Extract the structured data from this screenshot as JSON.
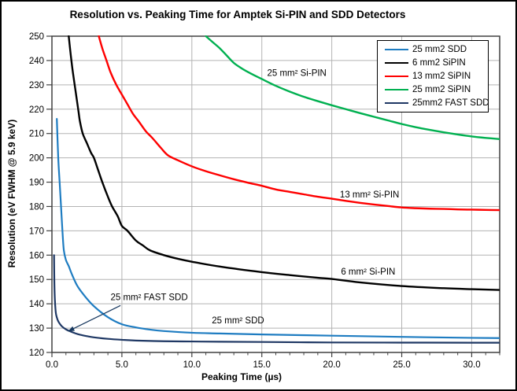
{
  "title": "Resolution vs. Peaking Time for Amptek Si-PIN and SDD Detectors",
  "chart_data": {
    "type": "line",
    "title": "Resolution vs. Peaking Time for Amptek Si-PIN and SDD Detectors",
    "xlabel": "Peaking Time (µs)",
    "ylabel": "Resolution (eV FWHM @ 5.9 keV)",
    "xlim": [
      0,
      32
    ],
    "ylim": [
      120,
      250
    ],
    "grid": true,
    "x_major_ticks": [
      0,
      5,
      10,
      15,
      20,
      25,
      30
    ],
    "x_major_tick_labels": [
      "0.0",
      "5.0",
      "10.0",
      "15.0",
      "20.0",
      "25.0",
      "30.0"
    ],
    "x_minor_tick_step": 1,
    "y_ticks": [
      120,
      130,
      140,
      150,
      160,
      170,
      180,
      190,
      200,
      210,
      220,
      230,
      240,
      250
    ],
    "legend_position": "top-right",
    "series": [
      {
        "name": "25 mm2 SDD",
        "color": "#1E7CC1",
        "width": 2.2,
        "points": [
          [
            0.35,
            216
          ],
          [
            0.45,
            200
          ],
          [
            0.55,
            190
          ],
          [
            0.65,
            180
          ],
          [
            0.75,
            170
          ],
          [
            0.85,
            162
          ],
          [
            1.0,
            158
          ],
          [
            1.2,
            155.5
          ],
          [
            1.4,
            152.5
          ],
          [
            1.8,
            147.5
          ],
          [
            2.3,
            143.5
          ],
          [
            3,
            139
          ],
          [
            4,
            134.5
          ],
          [
            5,
            131.6
          ],
          [
            6,
            130.3
          ],
          [
            7,
            129.4
          ],
          [
            8,
            128.8
          ],
          [
            10,
            128.1
          ],
          [
            12,
            127.8
          ],
          [
            15,
            127.4
          ],
          [
            20,
            126.9
          ],
          [
            25,
            126.4
          ],
          [
            30,
            126
          ],
          [
            32,
            125.9
          ]
        ]
      },
      {
        "name": "6 mm2 SiPIN",
        "color": "#000000",
        "width": 2.4,
        "points": [
          [
            1.2,
            250
          ],
          [
            1.35,
            242
          ],
          [
            1.5,
            235
          ],
          [
            1.7,
            227
          ],
          [
            1.9,
            219
          ],
          [
            2.0,
            215
          ],
          [
            2.2,
            210
          ],
          [
            2.5,
            206
          ],
          [
            2.8,
            202
          ],
          [
            3.0,
            200
          ],
          [
            3.3,
            195
          ],
          [
            3.6,
            190
          ],
          [
            4.0,
            184
          ],
          [
            4.3,
            180
          ],
          [
            4.7,
            176
          ],
          [
            5.0,
            172
          ],
          [
            5.4,
            170
          ],
          [
            6,
            166
          ],
          [
            6.5,
            164
          ],
          [
            7,
            162
          ],
          [
            8,
            160
          ],
          [
            9,
            158.5
          ],
          [
            10,
            157.3
          ],
          [
            12,
            155.3
          ],
          [
            15,
            153
          ],
          [
            17,
            151.8
          ],
          [
            19,
            150.7
          ],
          [
            20,
            150.2
          ],
          [
            22,
            148.8
          ],
          [
            25,
            147.3
          ],
          [
            28,
            146.4
          ],
          [
            30,
            146
          ],
          [
            32,
            145.7
          ]
        ]
      },
      {
        "name": "13 mm2 SiPIN",
        "color": "#FE0000",
        "width": 2.4,
        "points": [
          [
            3.35,
            250
          ],
          [
            3.6,
            245
          ],
          [
            3.9,
            240
          ],
          [
            4.2,
            235
          ],
          [
            4.6,
            230
          ],
          [
            5.0,
            226
          ],
          [
            5.4,
            222
          ],
          [
            5.8,
            218
          ],
          [
            6.2,
            215
          ],
          [
            6.7,
            211
          ],
          [
            7.2,
            208
          ],
          [
            7.8,
            204
          ],
          [
            8.3,
            201
          ],
          [
            9,
            199
          ],
          [
            10,
            196.5
          ],
          [
            11,
            194.5
          ],
          [
            12,
            192.8
          ],
          [
            13,
            191.2
          ],
          [
            14,
            189.8
          ],
          [
            15,
            188.5
          ],
          [
            16,
            187
          ],
          [
            17,
            186
          ],
          [
            18,
            185
          ],
          [
            19,
            184
          ],
          [
            20,
            183.2
          ],
          [
            21,
            182.3
          ],
          [
            22,
            181.5
          ],
          [
            23,
            180.8
          ],
          [
            24,
            180.2
          ],
          [
            25,
            179.6
          ],
          [
            26,
            179.3
          ],
          [
            27,
            179.1
          ],
          [
            28,
            179
          ],
          [
            29,
            178.8
          ],
          [
            30,
            178.7
          ],
          [
            31,
            178.6
          ],
          [
            32,
            178.5
          ]
        ]
      },
      {
        "name": "25 mm2 SiPIN",
        "color": "#00B050",
        "width": 2.4,
        "points": [
          [
            11,
            250
          ],
          [
            11.5,
            247.5
          ],
          [
            12,
            245
          ],
          [
            12.5,
            242
          ],
          [
            13,
            239
          ],
          [
            13.5,
            237
          ],
          [
            14,
            235.3
          ],
          [
            14.5,
            233.8
          ],
          [
            15,
            232.4
          ],
          [
            16,
            229.6
          ],
          [
            17,
            227.2
          ],
          [
            18,
            225.1
          ],
          [
            19,
            223.3
          ],
          [
            20,
            221.6
          ],
          [
            21,
            220
          ],
          [
            22,
            218.4
          ],
          [
            23,
            216.9
          ],
          [
            24,
            215.4
          ],
          [
            25,
            213.9
          ],
          [
            26,
            212.6
          ],
          [
            27,
            211.5
          ],
          [
            28,
            210.5
          ],
          [
            29,
            209.6
          ],
          [
            30,
            208.8
          ],
          [
            31,
            208.2
          ],
          [
            32,
            207.7
          ]
        ]
      },
      {
        "name": "25mm2 FAST SDD",
        "color": "#1F3864",
        "width": 2.2,
        "points": [
          [
            0.15,
            160
          ],
          [
            0.17,
            150
          ],
          [
            0.2,
            143
          ],
          [
            0.25,
            138
          ],
          [
            0.3,
            135.5
          ],
          [
            0.4,
            133.5
          ],
          [
            0.5,
            132.3
          ],
          [
            0.7,
            130.8
          ],
          [
            1,
            129.5
          ],
          [
            1.3,
            128.7
          ],
          [
            1.7,
            127.8
          ],
          [
            2,
            127.3
          ],
          [
            2.5,
            126.7
          ],
          [
            3,
            126.2
          ],
          [
            4,
            125.6
          ],
          [
            5,
            125.2
          ],
          [
            6,
            124.9
          ],
          [
            8,
            124.6
          ],
          [
            10,
            124.5
          ],
          [
            12,
            124.4
          ],
          [
            15,
            124.3
          ],
          [
            20,
            124.1
          ],
          [
            25,
            124.05
          ],
          [
            30,
            124
          ],
          [
            32,
            124
          ]
        ]
      }
    ],
    "annotations": [
      {
        "text": "25 mm² Si-PIN",
        "x": 17.5,
        "y": 235
      },
      {
        "text": "13 mm² Si-PIN",
        "x": 22.7,
        "y": 185
      },
      {
        "text": "6 mm² Si-PIN",
        "x": 22.6,
        "y": 153.3
      },
      {
        "text": "25 mm² SDD",
        "x": 13.3,
        "y": 133.3
      },
      {
        "text": "25 mm² FAST SDD",
        "x": 6.95,
        "y": 142.8
      }
    ],
    "arrow": {
      "from": {
        "x": 4.9,
        "y": 139.3
      },
      "to": {
        "x": 1.15,
        "y": 128.7
      },
      "color": "#17375E"
    }
  },
  "legend": {
    "items": [
      {
        "label": "25 mm2 SDD",
        "color": "#1E7CC1"
      },
      {
        "label": "6 mm2 SiPIN",
        "color": "#000000"
      },
      {
        "label": "13 mm2 SiPIN",
        "color": "#FE0000"
      },
      {
        "label": "25 mm2 SiPIN",
        "color": "#00B050"
      },
      {
        "label": "25mm2 FAST SDD",
        "color": "#1F3864"
      }
    ]
  },
  "style_colors": {
    "grid": "#B3B3B3",
    "plot_border": "#404040",
    "tick": "#404040",
    "text": "#000000",
    "background": "#FFFFFF",
    "outer_border": "#000000"
  }
}
